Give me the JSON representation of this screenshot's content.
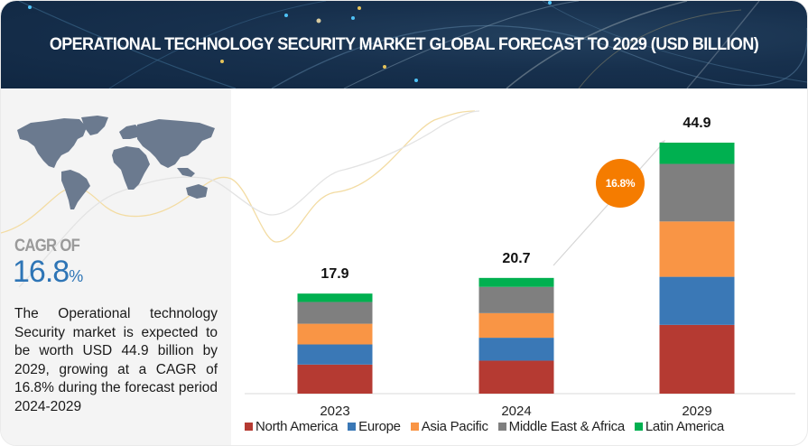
{
  "header": {
    "title": "OPERATIONAL TECHNOLOGY SECURITY MARKET GLOBAL FORECAST TO 2029 (USD BILLION)"
  },
  "left_panel": {
    "map_icon": "world-map",
    "cagr_label": "CAGR OF",
    "cagr_value": "16.8",
    "cagr_unit": "%",
    "description": "The Operational technology Security market is expected to be worth USD 44.9 billion by 2029, growing at a CAGR of 16.8% during the forecast period 2024-2029"
  },
  "cagr_bubble": "16.8%",
  "colors": {
    "North America": "#b53a32",
    "Europe": "#3a78b6",
    "Asia Pacific": "#f99545",
    "Middle East & Africa": "#7f7f7f",
    "Latin America": "#00b050"
  },
  "chart_data": {
    "type": "bar",
    "stacked": true,
    "title": "Operational Technology Security Market Global Forecast to 2029 (USD Billion)",
    "xlabel": "",
    "ylabel": "",
    "categories": [
      "2023",
      "2024",
      "2029"
    ],
    "totals": [
      "17.9",
      "20.7",
      "44.9"
    ],
    "series": [
      {
        "name": "North America",
        "values": [
          5.2,
          5.9,
          12.3
        ]
      },
      {
        "name": "Europe",
        "values": [
          3.6,
          4.1,
          8.6
        ]
      },
      {
        "name": "Asia Pacific",
        "values": [
          3.7,
          4.4,
          9.9
        ]
      },
      {
        "name": "Middle East & Africa",
        "values": [
          3.9,
          4.7,
          10.3
        ]
      },
      {
        "name": "Latin America",
        "values": [
          1.5,
          1.6,
          3.8
        ]
      }
    ],
    "ylim": [
      0,
      50
    ],
    "grid": false,
    "legend": "bottom",
    "annotations": [
      "CAGR 16.8% (2024-2029)"
    ]
  }
}
